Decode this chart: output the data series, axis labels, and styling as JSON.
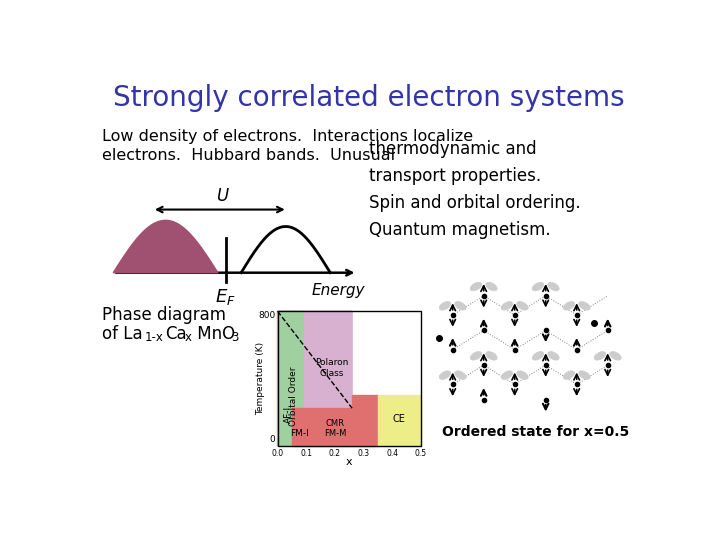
{
  "title": "Strongly correlated electron systems",
  "title_color": "#3333aa",
  "title_fontsize": 20,
  "bg_color": "#ffffff",
  "text_line1": "Low density of electrons.  Interactions localize",
  "text_line2": "electrons.  Hubbard bands.  Unusual",
  "text_right": "thermodynamic and\ntransport properties.\nSpin and orbital ordering.\nQuantum magnetism.",
  "ordered_label": "Ordered state for x=0.5",
  "ef_label": "E",
  "ef_sub": "F",
  "energy_label": "Energy",
  "u_label": "U",
  "band_color": "#a05070",
  "arrow_color": "#000000",
  "pd_pink": "#d8b0d0",
  "pd_green": "#a0d0a0",
  "pd_red": "#e07070",
  "pd_yellow": "#eeee88"
}
